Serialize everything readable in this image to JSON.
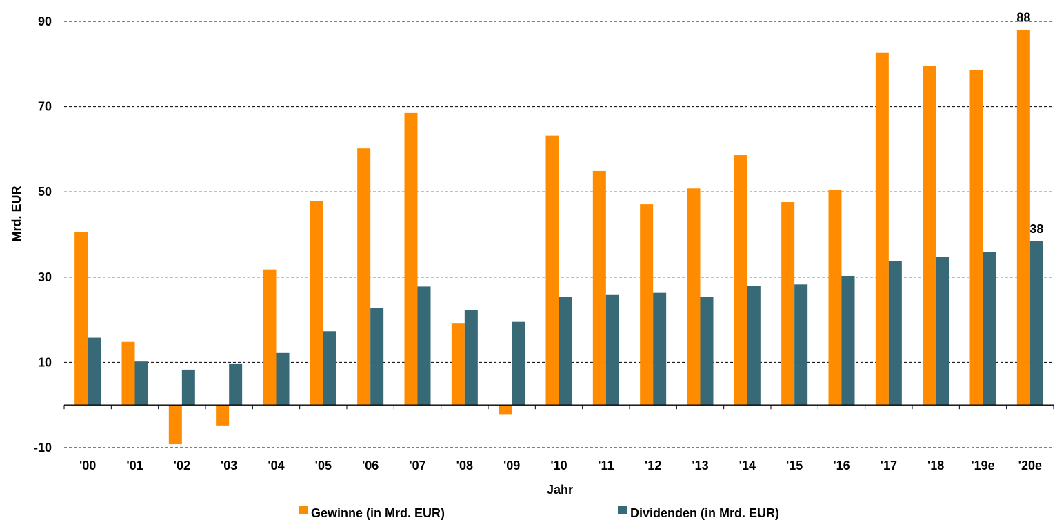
{
  "chart_data": {
    "type": "bar",
    "title": "",
    "xlabel": "Jahr",
    "ylabel": "Mrd. EUR",
    "ylim": [
      -10,
      90
    ],
    "yticks": [
      -10,
      10,
      30,
      50,
      70,
      90
    ],
    "grid": true,
    "legend_position": "bottom",
    "categories": [
      "'00",
      "'01",
      "'02",
      "'03",
      "'04",
      "'05",
      "'06",
      "'07",
      "'08",
      "'09",
      "'10",
      "'11",
      "'12",
      "'13",
      "'14",
      "'15",
      "'16",
      "'17",
      "'18",
      "'19e",
      "'20e"
    ],
    "series": [
      {
        "name": "Gewinne (in Mrd. EUR)",
        "color": "#ff8c00",
        "values": [
          40.5,
          14.8,
          -9.2,
          -4.8,
          31.8,
          47.8,
          60.2,
          68.5,
          19.1,
          -2.3,
          63.2,
          54.9,
          47.1,
          50.8,
          58.6,
          47.6,
          50.5,
          82.6,
          79.5,
          78.6,
          88
        ]
      },
      {
        "name": "Dividenden (in Mrd. EUR)",
        "color": "#376977",
        "values": [
          15.8,
          10.2,
          8.3,
          9.6,
          12.2,
          17.3,
          22.8,
          27.8,
          22.2,
          19.5,
          25.3,
          25.8,
          26.3,
          25.4,
          28.0,
          28.3,
          30.3,
          33.8,
          34.8,
          35.9,
          38.4
        ]
      }
    ],
    "data_labels": [
      {
        "series": 0,
        "index": 20,
        "text": "88"
      },
      {
        "series": 1,
        "index": 20,
        "text": "38"
      }
    ]
  }
}
